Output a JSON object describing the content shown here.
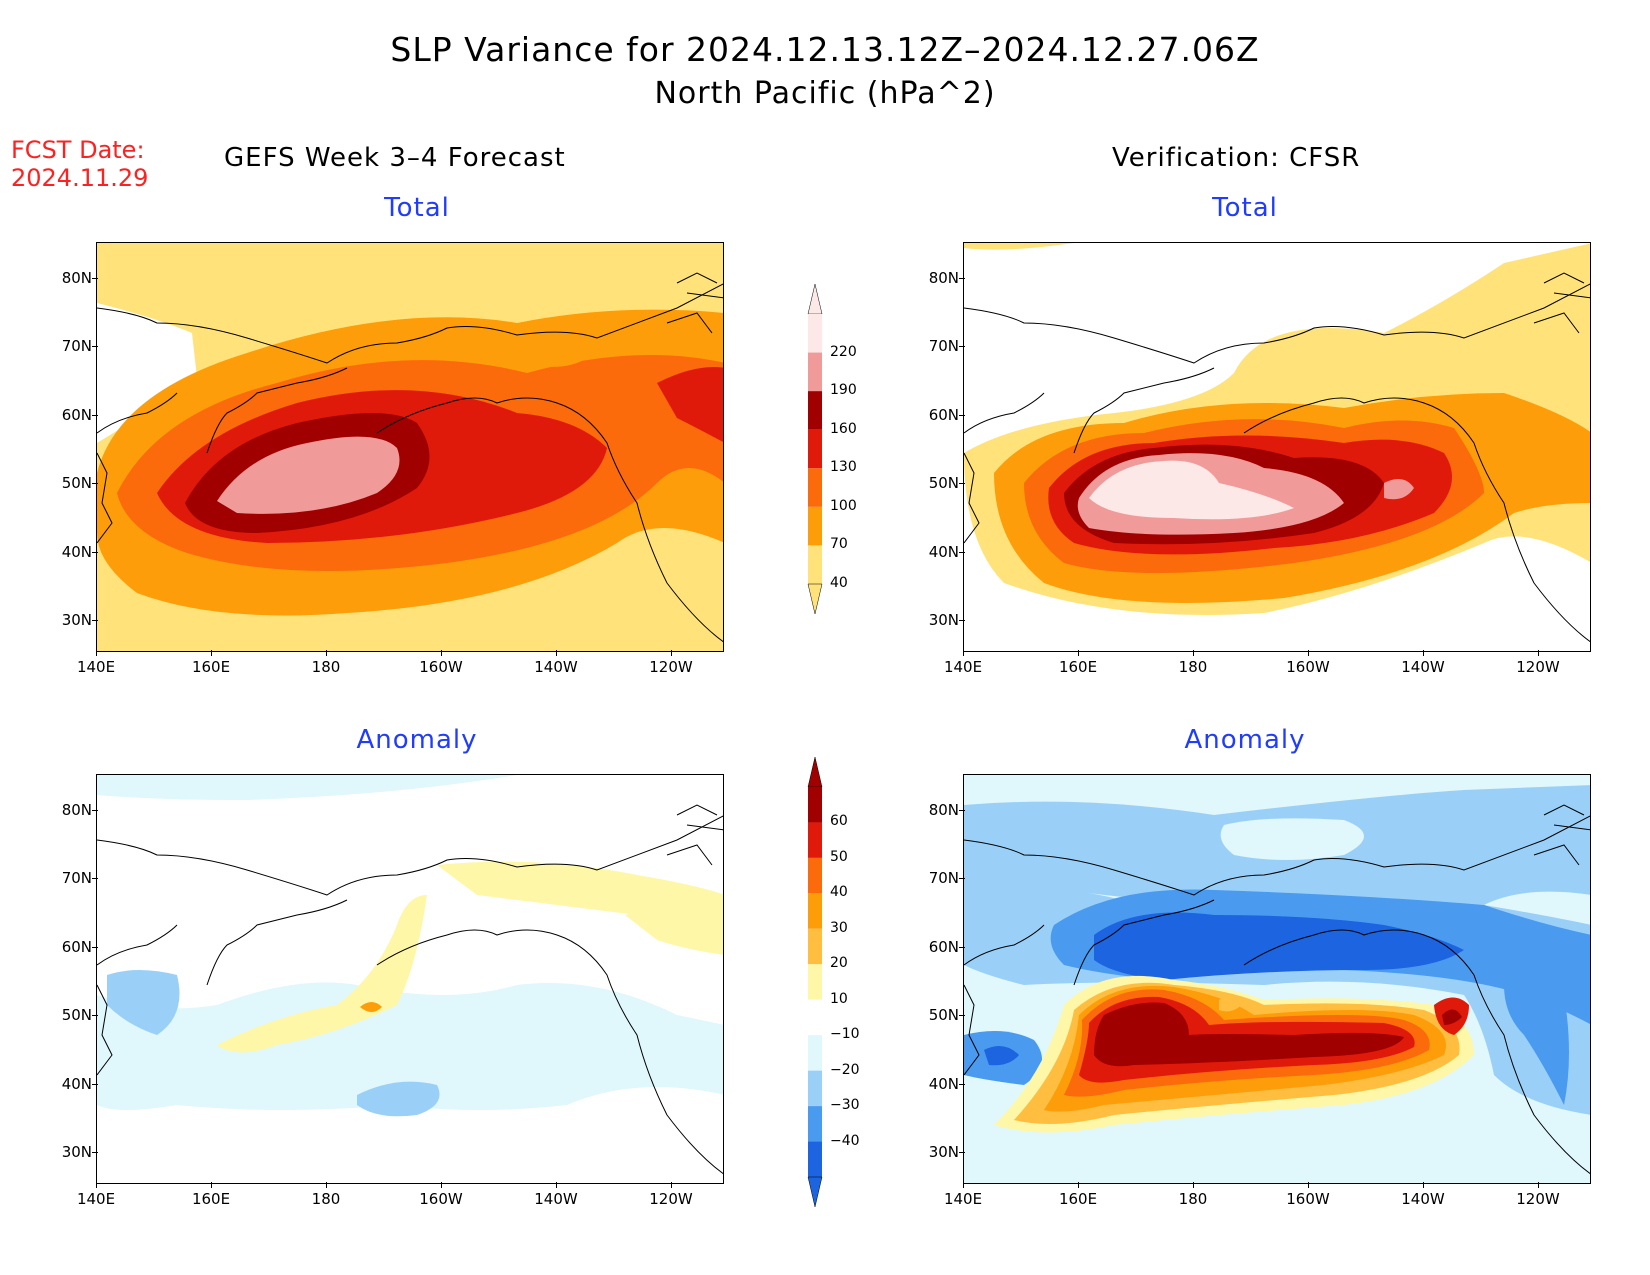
{
  "title_line1": "SLP Variance for 2024.12.13.12Z–2024.12.27.06Z",
  "title_line2": "North Pacific (hPa^2)",
  "fcst_date_label": "FCST Date:",
  "fcst_date_value": "2024.11.29",
  "left_column_header": "GEFS Week 3–4 Forecast",
  "right_column_header": "Verification: CFSR",
  "panels": {
    "top_left_title": "Total",
    "top_right_title": "Total",
    "bottom_left_title": "Anomaly",
    "bottom_right_title": "Anomaly"
  },
  "lat_labels": [
    "80N",
    "70N",
    "60N",
    "50N",
    "40N",
    "30N"
  ],
  "lon_labels": [
    "140E",
    "160E",
    "180",
    "160W",
    "140W",
    "120W"
  ],
  "colorbar_total": {
    "labels": [
      "220",
      "190",
      "160",
      "130",
      "100",
      "70",
      "40"
    ],
    "colors": [
      "#fde8e8",
      "#f09a9a",
      "#a10000",
      "#e01a0a",
      "#fb6a0b",
      "#fd9d0a",
      "#ffe37a"
    ]
  },
  "colorbar_anomaly": {
    "labels": [
      "60",
      "50",
      "40",
      "30",
      "20",
      "10",
      "−10",
      "−20",
      "−30",
      "−40"
    ],
    "colors": [
      "#a10000",
      "#e01a0a",
      "#fb6a0b",
      "#fd9d0a",
      "#ffbe40",
      "#fff7a8",
      "#ffffff",
      "#e0f7fb",
      "#9ad0f7",
      "#4a9af0",
      "#1c64e0"
    ]
  }
}
